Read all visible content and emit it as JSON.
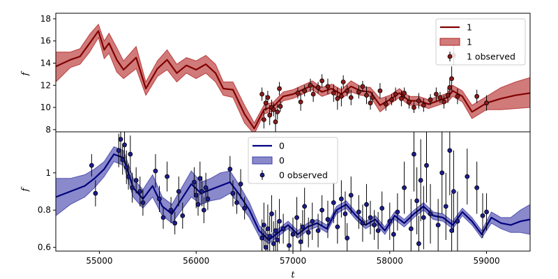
{
  "chart_data": [
    {
      "type": "line",
      "panel": "top",
      "ylabel": "f",
      "xlabel": "",
      "xlim": [
        54550,
        59450
      ],
      "ylim": [
        7.8,
        18.5
      ],
      "yticks": [
        8,
        10,
        12,
        14,
        16,
        18
      ],
      "xticks": [],
      "colors": {
        "line": "#800000",
        "band": "#b22222",
        "point": "#8b1a1a"
      },
      "legend": {
        "placement": "upper-right",
        "entries": [
          "1",
          "1",
          "1 observed"
        ]
      },
      "series": [
        {
          "name": "1",
          "kind": "model",
          "x": [
            54550,
            54700,
            54800,
            54900,
            54990,
            55050,
            55100,
            55180,
            55250,
            55380,
            55480,
            55600,
            55700,
            55800,
            55900,
            56000,
            56100,
            56200,
            56280,
            56380,
            56500,
            56600,
            56700,
            56800,
            56900,
            57000,
            57100,
            57200,
            57300,
            57400,
            57500,
            57600,
            57700,
            57800,
            57900,
            58000,
            58100,
            58200,
            58300,
            58400,
            58500,
            58600,
            58650,
            58750,
            58850,
            59000,
            59150,
            59300,
            59450
          ],
          "y": [
            13.7,
            14.3,
            14.6,
            15.8,
            16.9,
            15.2,
            15.8,
            14.3,
            13.4,
            14.5,
            11.7,
            13.5,
            14.3,
            13.1,
            13.8,
            13.4,
            13.9,
            13.1,
            11.7,
            11.6,
            9.4,
            8.1,
            9.8,
            10.1,
            11.0,
            11.2,
            11.6,
            12.0,
            11.4,
            11.7,
            11.2,
            11.9,
            11.5,
            11.4,
            10.2,
            10.7,
            11.3,
            10.6,
            10.6,
            10.3,
            10.6,
            10.9,
            11.5,
            11.0,
            9.6,
            10.4,
            10.8,
            11.1,
            11.3
          ]
        },
        {
          "name": "1",
          "kind": "band",
          "x": [
            54550,
            54700,
            54800,
            54900,
            54990,
            55050,
            55100,
            55180,
            55250,
            55380,
            55480,
            55600,
            55700,
            55800,
            55900,
            56000,
            56100,
            56200,
            56280,
            56380,
            56500,
            56600,
            56700,
            56800,
            56900,
            57000,
            57100,
            57200,
            57300,
            57400,
            57500,
            57600,
            57700,
            57800,
            57900,
            58000,
            58100,
            58200,
            58300,
            58400,
            58500,
            58600,
            58650,
            58750,
            58850,
            59000,
            59150,
            59300,
            59450
          ],
          "lower": [
            12.3,
            13.6,
            13.9,
            15.0,
            16.3,
            14.4,
            14.9,
            13.2,
            12.6,
            13.5,
            11.1,
            12.8,
            13.4,
            12.3,
            13.1,
            12.6,
            13.1,
            12.3,
            11.1,
            10.9,
            8.6,
            7.6,
            9.4,
            9.7,
            10.6,
            10.8,
            11.2,
            11.6,
            11.0,
            11.3,
            10.8,
            11.4,
            11.1,
            11.0,
            9.6,
            10.3,
            10.9,
            10.2,
            10.2,
            9.9,
            10.2,
            10.5,
            11.0,
            10.5,
            9.0,
            9.8,
            9.8,
            9.9,
            10.0
          ],
          "upper": [
            15.0,
            15.0,
            15.3,
            16.6,
            17.5,
            16.0,
            16.7,
            15.4,
            14.2,
            15.5,
            12.3,
            14.2,
            15.2,
            13.9,
            14.5,
            14.2,
            14.7,
            13.9,
            12.3,
            12.3,
            10.2,
            8.6,
            10.2,
            10.5,
            11.4,
            11.6,
            12.0,
            12.4,
            11.8,
            12.1,
            11.6,
            12.4,
            11.9,
            11.8,
            10.8,
            11.1,
            11.7,
            11.0,
            11.0,
            10.7,
            11.0,
            11.3,
            12.0,
            11.5,
            10.2,
            11.0,
            11.8,
            12.3,
            12.7
          ]
        },
        {
          "name": "1 observed",
          "kind": "points",
          "x": [
            56680,
            56700,
            56720,
            56740,
            56760,
            56780,
            56800,
            56820,
            56840,
            56860,
            56870,
            57050,
            57080,
            57120,
            57180,
            57210,
            57260,
            57300,
            57360,
            57420,
            57460,
            57500,
            57520,
            57560,
            57600,
            57680,
            57720,
            57760,
            57800,
            57820,
            57900,
            57960,
            58020,
            58060,
            58120,
            58150,
            58200,
            58250,
            58300,
            58350,
            58420,
            58480,
            58520,
            58560,
            58600,
            58620,
            58640,
            58660,
            58700,
            58900,
            59000
          ],
          "y": [
            11.2,
            8.9,
            10.4,
            10.9,
            9.3,
            10.0,
            9.8,
            8.7,
            9.6,
            11.7,
            10.1,
            11.3,
            10.5,
            11.5,
            12.0,
            11.2,
            11.8,
            12.4,
            11.9,
            11.3,
            10.8,
            11.0,
            12.3,
            11.5,
            10.9,
            11.4,
            11.9,
            11.1,
            10.4,
            10.9,
            11.5,
            10.3,
            10.7,
            11.2,
            10.8,
            11.3,
            10.5,
            10.0,
            10.6,
            10.2,
            10.7,
            11.2,
            10.9,
            10.5,
            11.1,
            11.8,
            12.6,
            14.7,
            11.0,
            11.0,
            10.4
          ],
          "yerr": [
            0.6,
            0.8,
            0.7,
            0.6,
            0.9,
            0.7,
            0.6,
            1.0,
            0.7,
            0.6,
            0.5,
            0.5,
            0.8,
            0.5,
            0.6,
            0.7,
            0.5,
            0.6,
            0.7,
            0.8,
            1.0,
            0.9,
            0.6,
            0.5,
            0.7,
            0.6,
            0.5,
            0.8,
            0.6,
            0.5,
            0.7,
            0.6,
            0.5,
            0.6,
            0.7,
            0.5,
            0.6,
            0.5,
            0.7,
            0.6,
            0.5,
            0.6,
            0.5,
            0.6,
            0.7,
            0.9,
            1.1,
            0.9,
            0.7,
            0.6,
            0.7
          ]
        }
      ]
    },
    {
      "type": "line",
      "panel": "bottom",
      "ylabel": "f",
      "xlabel": "t",
      "xlim": [
        54550,
        59450
      ],
      "ylim": [
        0.58,
        1.22
      ],
      "yticks": [
        0.6,
        0.8,
        1.0
      ],
      "xticks": [
        55000,
        56000,
        57000,
        58000,
        59000
      ],
      "colors": {
        "line": "#00007f",
        "band": "#3b3ba8",
        "point": "#1c1c8f"
      },
      "legend": {
        "placement": "upper-center",
        "entries": [
          "0",
          "0",
          "0 observed"
        ]
      },
      "series": [
        {
          "name": "0",
          "kind": "model",
          "x": [
            54550,
            54700,
            54850,
            54950,
            55050,
            55150,
            55250,
            55350,
            55450,
            55550,
            55650,
            55750,
            55850,
            55950,
            56050,
            56150,
            56250,
            56350,
            56450,
            56550,
            56650,
            56750,
            56850,
            56950,
            57050,
            57150,
            57250,
            57350,
            57450,
            57550,
            57650,
            57750,
            57850,
            57950,
            58050,
            58150,
            58250,
            58350,
            58450,
            58550,
            58650,
            58750,
            58850,
            58950,
            59050,
            59150,
            59250,
            59350,
            59450
          ],
          "y": [
            0.87,
            0.9,
            0.93,
            0.97,
            1.02,
            1.1,
            1.08,
            0.92,
            0.86,
            0.93,
            0.82,
            0.78,
            0.86,
            0.94,
            0.89,
            0.91,
            0.93,
            0.95,
            0.88,
            0.8,
            0.69,
            0.64,
            0.68,
            0.72,
            0.67,
            0.71,
            0.73,
            0.7,
            0.8,
            0.83,
            0.77,
            0.72,
            0.75,
            0.69,
            0.77,
            0.73,
            0.78,
            0.82,
            0.77,
            0.76,
            0.72,
            0.79,
            0.74,
            0.67,
            0.76,
            0.73,
            0.72,
            0.74,
            0.75
          ]
        },
        {
          "name": "0",
          "kind": "band",
          "x": [
            54550,
            54700,
            54850,
            54950,
            55050,
            55150,
            55250,
            55350,
            55450,
            55550,
            55650,
            55750,
            55850,
            55950,
            56050,
            56150,
            56250,
            56350,
            56450,
            56550,
            56650,
            56750,
            56850,
            56950,
            57050,
            57150,
            57250,
            57350,
            57450,
            57550,
            57650,
            57750,
            57850,
            57950,
            58050,
            58150,
            58250,
            58350,
            58450,
            58550,
            58650,
            58750,
            58850,
            58950,
            59050,
            59150,
            59250,
            59350,
            59450
          ],
          "lower": [
            0.77,
            0.83,
            0.87,
            0.92,
            0.98,
            1.06,
            1.04,
            0.87,
            0.81,
            0.87,
            0.77,
            0.73,
            0.8,
            0.87,
            0.83,
            0.85,
            0.86,
            0.89,
            0.83,
            0.76,
            0.66,
            0.62,
            0.66,
            0.7,
            0.65,
            0.69,
            0.71,
            0.68,
            0.78,
            0.81,
            0.75,
            0.7,
            0.73,
            0.67,
            0.75,
            0.71,
            0.76,
            0.8,
            0.75,
            0.74,
            0.7,
            0.77,
            0.72,
            0.65,
            0.73,
            0.7,
            0.68,
            0.68,
            0.67
          ],
          "upper": [
            0.97,
            0.97,
            0.99,
            1.02,
            1.06,
            1.14,
            1.12,
            0.97,
            0.91,
            0.99,
            0.87,
            0.83,
            0.92,
            1.01,
            0.95,
            0.97,
            1.0,
            1.01,
            0.93,
            0.84,
            0.72,
            0.66,
            0.7,
            0.74,
            0.69,
            0.73,
            0.75,
            0.72,
            0.82,
            0.85,
            0.79,
            0.74,
            0.77,
            0.71,
            0.79,
            0.75,
            0.8,
            0.84,
            0.79,
            0.78,
            0.74,
            0.81,
            0.76,
            0.69,
            0.79,
            0.76,
            0.76,
            0.8,
            0.83
          ]
        },
        {
          "name": "0 observed",
          "kind": "points",
          "x": [
            54920,
            54960,
            55200,
            55220,
            55240,
            55260,
            55280,
            55300,
            55320,
            55340,
            55380,
            55420,
            55450,
            55580,
            55620,
            55660,
            55700,
            55740,
            55780,
            55820,
            55860,
            55980,
            56000,
            56020,
            56040,
            56060,
            56080,
            56100,
            56120,
            56350,
            56380,
            56420,
            56460,
            56500,
            56680,
            56700,
            56720,
            56740,
            56760,
            56780,
            56800,
            56820,
            56840,
            56860,
            56900,
            56960,
            57000,
            57040,
            57080,
            57100,
            57120,
            57160,
            57200,
            57260,
            57300,
            57360,
            57420,
            57460,
            57500,
            57540,
            57560,
            57600,
            57680,
            57720,
            57760,
            57800,
            57840,
            57880,
            57920,
            58000,
            58040,
            58080,
            58150,
            58220,
            58250,
            58280,
            58300,
            58320,
            58350,
            58380,
            58420,
            58500,
            58540,
            58580,
            58620,
            58640,
            58660,
            58700,
            58800,
            58900,
            58960,
            59000
          ],
          "y": [
            1.04,
            0.89,
            1.12,
            1.18,
            1.07,
            1.15,
            1.03,
            0.98,
            1.1,
            0.92,
            0.96,
            0.9,
            0.84,
            1.01,
            0.86,
            0.76,
            0.98,
            0.8,
            0.73,
            0.9,
            0.77,
            0.95,
            0.88,
            0.83,
            0.97,
            0.9,
            0.8,
            0.92,
            0.86,
            1.02,
            0.89,
            0.84,
            0.94,
            0.81,
            0.65,
            0.72,
            0.6,
            0.7,
            0.66,
            0.78,
            0.62,
            0.69,
            0.64,
            0.74,
            0.7,
            0.61,
            0.67,
            0.76,
            0.63,
            0.71,
            0.82,
            0.68,
            0.74,
            0.69,
            0.8,
            0.75,
            0.84,
            0.71,
            0.86,
            0.78,
            0.65,
            0.88,
            0.79,
            0.73,
            0.83,
            0.76,
            0.72,
            0.69,
            0.81,
            0.74,
            0.67,
            0.79,
            0.92,
            0.7,
            1.1,
            0.85,
            0.62,
            0.96,
            0.76,
            1.04,
            0.78,
            0.72,
            1.0,
            0.82,
            1.12,
            0.69,
            0.9,
            0.74,
            0.98,
            0.92,
            0.77,
            0.79
          ],
          "yerr": [
            0.06,
            0.07,
            0.09,
            0.1,
            0.08,
            0.1,
            0.09,
            0.07,
            0.1,
            0.08,
            0.07,
            0.08,
            0.07,
            0.09,
            0.07,
            0.06,
            0.08,
            0.07,
            0.06,
            0.08,
            0.07,
            0.08,
            0.07,
            0.06,
            0.09,
            0.08,
            0.07,
            0.08,
            0.06,
            0.07,
            0.07,
            0.06,
            0.08,
            0.06,
            0.1,
            0.12,
            0.1,
            0.13,
            0.11,
            0.1,
            0.12,
            0.11,
            0.1,
            0.12,
            0.08,
            0.1,
            0.09,
            0.11,
            0.1,
            0.09,
            0.1,
            0.08,
            0.1,
            0.09,
            0.08,
            0.1,
            0.11,
            0.09,
            0.1,
            0.12,
            0.08,
            0.1,
            0.09,
            0.1,
            0.11,
            0.09,
            0.08,
            0.1,
            0.09,
            0.1,
            0.09,
            0.1,
            0.14,
            0.16,
            0.2,
            0.18,
            0.15,
            0.22,
            0.17,
            0.2,
            0.16,
            0.14,
            0.22,
            0.18,
            0.24,
            0.2,
            0.22,
            0.16,
            0.15,
            0.14,
            0.12,
            0.1
          ]
        }
      ]
    }
  ]
}
